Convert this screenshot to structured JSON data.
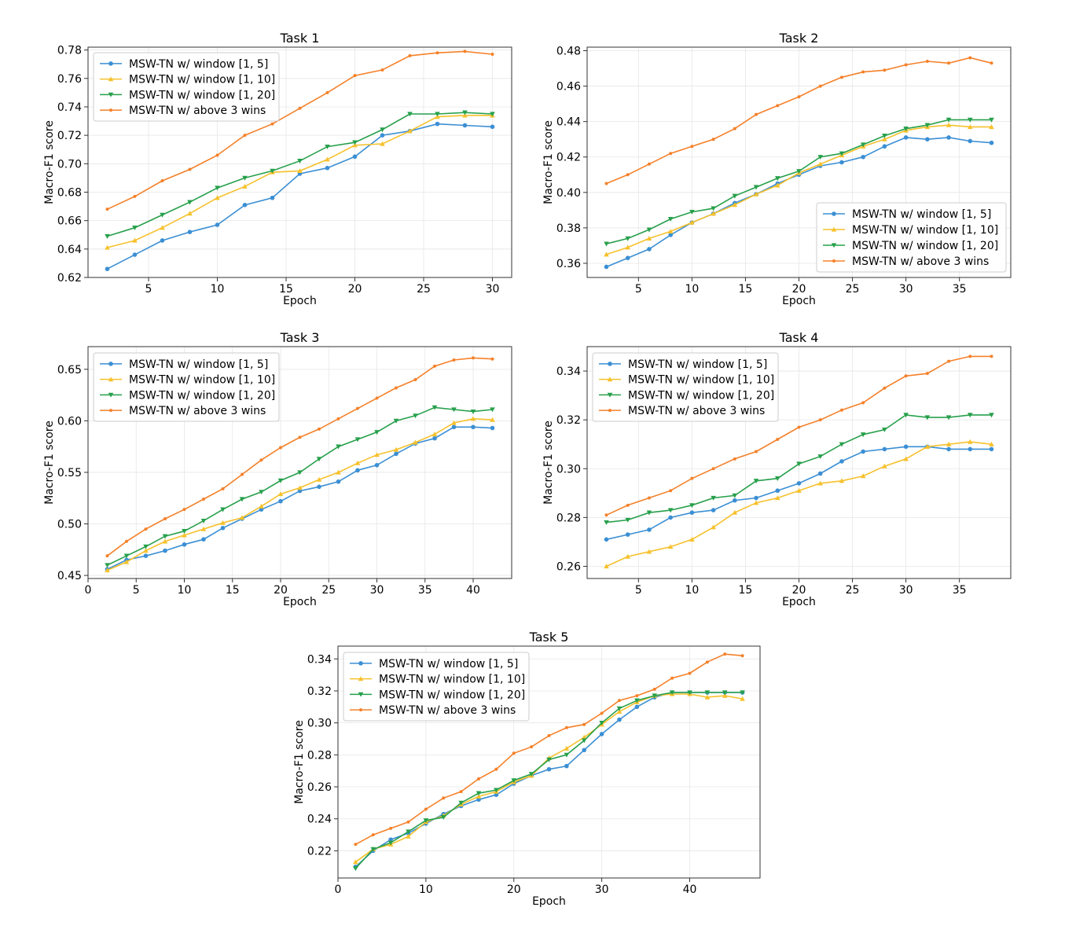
{
  "figure": {
    "series_names": [
      "MSW-TN w/ window [1, 5]",
      "MSW-TN w/ window [1, 10]",
      "MSW-TN w/ window [1, 20]",
      "MSW-TN w/ above 3 wins"
    ],
    "series_colors": [
      "#3b8fd4",
      "#f6c12c",
      "#27a04b",
      "#f5812a"
    ],
    "series_markers": [
      "circle",
      "triangle-up",
      "triangle-down",
      "small-circle"
    ]
  },
  "chart_data": [
    {
      "type": "line",
      "title": "Task 1",
      "xlabel": "Epoch",
      "ylabel": "Macro-F1 score",
      "xlim": [
        0.6,
        31.4
      ],
      "ylim": [
        0.62,
        0.782
      ],
      "xticks": [
        5,
        10,
        15,
        20,
        25,
        30
      ],
      "xtick_labels": [
        "5",
        "10",
        "15",
        "20",
        "25",
        "30"
      ],
      "yticks": [
        0.62,
        0.64,
        0.66,
        0.68,
        0.7,
        0.72,
        0.74,
        0.76,
        0.78
      ],
      "ytick_labels": [
        "0.62",
        "0.64",
        "0.66",
        "0.68",
        "0.70",
        "0.72",
        "0.74",
        "0.76",
        "0.78"
      ],
      "grid": true,
      "legend_position": "top-left",
      "x": [
        2,
        4,
        6,
        8,
        10,
        12,
        14,
        16,
        18,
        20,
        22,
        24,
        26,
        28,
        30
      ],
      "series": [
        {
          "name": "MSW-TN w/ window [1, 5]",
          "values": [
            0.626,
            0.636,
            0.646,
            0.652,
            0.657,
            0.671,
            0.676,
            0.693,
            0.697,
            0.705,
            0.72,
            0.723,
            0.728,
            0.727,
            0.726
          ]
        },
        {
          "name": "MSW-TN w/ window [1, 10]",
          "values": [
            0.641,
            0.646,
            0.655,
            0.665,
            0.676,
            0.684,
            0.694,
            0.695,
            0.703,
            0.713,
            0.714,
            0.723,
            0.733,
            0.734,
            0.734
          ]
        },
        {
          "name": "MSW-TN w/ window [1, 20]",
          "values": [
            0.649,
            0.655,
            0.664,
            0.673,
            0.683,
            0.69,
            0.695,
            0.702,
            0.712,
            0.715,
            0.724,
            0.735,
            0.735,
            0.736,
            0.735
          ]
        },
        {
          "name": "MSW-TN w/ above 3 wins",
          "values": [
            0.668,
            0.677,
            0.688,
            0.696,
            0.706,
            0.72,
            0.728,
            0.739,
            0.75,
            0.762,
            0.766,
            0.776,
            0.778,
            0.779,
            0.777
          ]
        }
      ]
    },
    {
      "type": "line",
      "title": "Task 2",
      "xlabel": "Epoch",
      "ylabel": "Macro-F1 score",
      "xlim": [
        0.2,
        39.8
      ],
      "ylim": [
        0.352,
        0.482
      ],
      "xticks": [
        5,
        10,
        15,
        20,
        25,
        30,
        35
      ],
      "xtick_labels": [
        "5",
        "10",
        "15",
        "20",
        "25",
        "30",
        "35"
      ],
      "yticks": [
        0.36,
        0.38,
        0.4,
        0.42,
        0.44,
        0.46,
        0.48
      ],
      "ytick_labels": [
        "0.36",
        "0.38",
        "0.40",
        "0.42",
        "0.44",
        "0.46",
        "0.48"
      ],
      "grid": true,
      "legend_position": "lower-right",
      "x": [
        2,
        4,
        6,
        8,
        10,
        12,
        14,
        16,
        18,
        20,
        22,
        24,
        26,
        28,
        30,
        32,
        34,
        36,
        38
      ],
      "series": [
        {
          "name": "MSW-TN w/ window [1, 5]",
          "values": [
            0.358,
            0.363,
            0.368,
            0.376,
            0.383,
            0.388,
            0.394,
            0.399,
            0.405,
            0.41,
            0.415,
            0.417,
            0.42,
            0.426,
            0.431,
            0.43,
            0.431,
            0.429,
            0.428
          ]
        },
        {
          "name": "MSW-TN w/ window [1, 10]",
          "values": [
            0.365,
            0.369,
            0.374,
            0.378,
            0.383,
            0.388,
            0.393,
            0.399,
            0.404,
            0.411,
            0.416,
            0.421,
            0.426,
            0.43,
            0.435,
            0.437,
            0.438,
            0.437,
            0.437
          ]
        },
        {
          "name": "MSW-TN w/ window [1, 20]",
          "values": [
            0.371,
            0.374,
            0.379,
            0.385,
            0.389,
            0.391,
            0.398,
            0.403,
            0.408,
            0.412,
            0.42,
            0.422,
            0.427,
            0.432,
            0.436,
            0.438,
            0.441,
            0.441,
            0.441
          ]
        },
        {
          "name": "MSW-TN w/ above 3 wins",
          "values": [
            0.405,
            0.41,
            0.416,
            0.422,
            0.426,
            0.43,
            0.436,
            0.444,
            0.449,
            0.454,
            0.46,
            0.465,
            0.468,
            0.469,
            0.472,
            0.474,
            0.473,
            0.476,
            0.473
          ]
        }
      ]
    },
    {
      "type": "line",
      "title": "Task 3",
      "xlabel": "Epoch",
      "ylabel": "Macro-F1 score",
      "xlim": [
        0,
        44
      ],
      "ylim": [
        0.447,
        0.672
      ],
      "xticks": [
        0,
        5,
        10,
        15,
        20,
        25,
        30,
        35,
        40
      ],
      "xtick_labels": [
        "0",
        "5",
        "10",
        "15",
        "20",
        "25",
        "30",
        "35",
        "40"
      ],
      "yticks": [
        0.45,
        0.5,
        0.55,
        0.6,
        0.65
      ],
      "ytick_labels": [
        "0.45",
        "0.50",
        "0.55",
        "0.60",
        "0.65"
      ],
      "grid": true,
      "legend_position": "top-left",
      "x": [
        2,
        4,
        6,
        8,
        10,
        12,
        14,
        16,
        18,
        20,
        22,
        24,
        26,
        28,
        30,
        32,
        34,
        36,
        38,
        40,
        42
      ],
      "series": [
        {
          "name": "MSW-TN w/ window [1, 5]",
          "values": [
            0.456,
            0.465,
            0.469,
            0.474,
            0.48,
            0.485,
            0.496,
            0.505,
            0.514,
            0.522,
            0.532,
            0.536,
            0.541,
            0.552,
            0.557,
            0.568,
            0.578,
            0.583,
            0.594,
            0.594,
            0.593
          ]
        },
        {
          "name": "MSW-TN w/ window [1, 10]",
          "values": [
            0.455,
            0.463,
            0.474,
            0.483,
            0.489,
            0.495,
            0.501,
            0.506,
            0.517,
            0.529,
            0.535,
            0.543,
            0.55,
            0.559,
            0.567,
            0.572,
            0.579,
            0.587,
            0.598,
            0.602,
            0.601
          ]
        },
        {
          "name": "MSW-TN w/ window [1, 20]",
          "values": [
            0.46,
            0.469,
            0.478,
            0.488,
            0.493,
            0.503,
            0.514,
            0.524,
            0.531,
            0.542,
            0.55,
            0.563,
            0.575,
            0.582,
            0.589,
            0.6,
            0.605,
            0.613,
            0.611,
            0.609,
            0.611
          ]
        },
        {
          "name": "MSW-TN w/ above 3 wins",
          "values": [
            0.469,
            0.483,
            0.495,
            0.505,
            0.514,
            0.524,
            0.534,
            0.548,
            0.562,
            0.574,
            0.584,
            0.592,
            0.602,
            0.612,
            0.622,
            0.632,
            0.64,
            0.653,
            0.659,
            0.661,
            0.66
          ]
        }
      ]
    },
    {
      "type": "line",
      "title": "Task 4",
      "xlabel": "Epoch",
      "ylabel": "Macro-F1 score",
      "xlim": [
        0.2,
        39.8
      ],
      "ylim": [
        0.255,
        0.35
      ],
      "xticks": [
        5,
        10,
        15,
        20,
        25,
        30,
        35
      ],
      "xtick_labels": [
        "5",
        "10",
        "15",
        "20",
        "25",
        "30",
        "35"
      ],
      "yticks": [
        0.26,
        0.28,
        0.3,
        0.32,
        0.34
      ],
      "ytick_labels": [
        "0.26",
        "0.28",
        "0.30",
        "0.32",
        "0.34"
      ],
      "grid": true,
      "legend_position": "top-left",
      "x": [
        2,
        4,
        6,
        8,
        10,
        12,
        14,
        16,
        18,
        20,
        22,
        24,
        26,
        28,
        30,
        32,
        34,
        36,
        38
      ],
      "series": [
        {
          "name": "MSW-TN w/ window [1, 5]",
          "values": [
            0.271,
            0.273,
            0.275,
            0.28,
            0.282,
            0.283,
            0.287,
            0.288,
            0.291,
            0.294,
            0.298,
            0.303,
            0.307,
            0.308,
            0.309,
            0.309,
            0.308,
            0.308,
            0.308
          ]
        },
        {
          "name": "MSW-TN w/ window [1, 10]",
          "values": [
            0.26,
            0.264,
            0.266,
            0.268,
            0.271,
            0.276,
            0.282,
            0.286,
            0.288,
            0.291,
            0.294,
            0.295,
            0.297,
            0.301,
            0.304,
            0.309,
            0.31,
            0.311,
            0.31
          ]
        },
        {
          "name": "MSW-TN w/ window [1, 20]",
          "values": [
            0.278,
            0.279,
            0.282,
            0.283,
            0.285,
            0.288,
            0.289,
            0.295,
            0.296,
            0.302,
            0.305,
            0.31,
            0.314,
            0.316,
            0.322,
            0.321,
            0.321,
            0.322,
            0.322
          ]
        },
        {
          "name": "MSW-TN w/ above 3 wins",
          "values": [
            0.281,
            0.285,
            0.288,
            0.291,
            0.296,
            0.3,
            0.304,
            0.307,
            0.312,
            0.317,
            0.32,
            0.324,
            0.327,
            0.333,
            0.338,
            0.339,
            0.344,
            0.346,
            0.346
          ]
        }
      ]
    },
    {
      "type": "line",
      "title": "Task 5",
      "xlabel": "Epoch",
      "ylabel": "Macro-F1 score",
      "xlim": [
        0,
        48
      ],
      "ylim": [
        0.203,
        0.348
      ],
      "xticks": [
        0,
        10,
        20,
        30,
        40
      ],
      "xtick_labels": [
        "0",
        "10",
        "20",
        "30",
        "40"
      ],
      "yticks": [
        0.22,
        0.24,
        0.26,
        0.28,
        0.3,
        0.32,
        0.34
      ],
      "ytick_labels": [
        "0.22",
        "0.24",
        "0.26",
        "0.28",
        "0.30",
        "0.32",
        "0.34"
      ],
      "grid": true,
      "legend_position": "top-left",
      "x": [
        2,
        4,
        6,
        8,
        10,
        12,
        14,
        16,
        18,
        20,
        22,
        24,
        26,
        28,
        30,
        32,
        34,
        36,
        38,
        40,
        42,
        44,
        46
      ],
      "series": [
        {
          "name": "MSW-TN w/ window [1, 5]",
          "values": [
            0.21,
            0.22,
            0.227,
            0.231,
            0.237,
            0.243,
            0.248,
            0.252,
            0.255,
            0.262,
            0.267,
            0.271,
            0.273,
            0.283,
            0.293,
            0.302,
            0.31,
            0.316,
            0.319,
            0.319,
            0.319,
            0.319,
            0.319
          ]
        },
        {
          "name": "MSW-TN w/ window [1, 10]",
          "values": [
            0.213,
            0.221,
            0.224,
            0.229,
            0.238,
            0.242,
            0.249,
            0.254,
            0.257,
            0.263,
            0.267,
            0.278,
            0.284,
            0.291,
            0.299,
            0.307,
            0.313,
            0.317,
            0.318,
            0.318,
            0.316,
            0.317,
            0.315
          ]
        },
        {
          "name": "MSW-TN w/ window [1, 20]",
          "values": [
            0.209,
            0.221,
            0.225,
            0.232,
            0.239,
            0.241,
            0.25,
            0.256,
            0.258,
            0.264,
            0.268,
            0.277,
            0.28,
            0.289,
            0.3,
            0.309,
            0.314,
            0.317,
            0.319,
            0.319,
            0.319,
            0.319,
            0.319
          ]
        },
        {
          "name": "MSW-TN w/ above 3 wins",
          "values": [
            0.224,
            0.23,
            0.234,
            0.238,
            0.246,
            0.253,
            0.257,
            0.265,
            0.271,
            0.281,
            0.285,
            0.292,
            0.297,
            0.299,
            0.306,
            0.314,
            0.317,
            0.321,
            0.328,
            0.331,
            0.338,
            0.343,
            0.342
          ]
        }
      ]
    }
  ]
}
